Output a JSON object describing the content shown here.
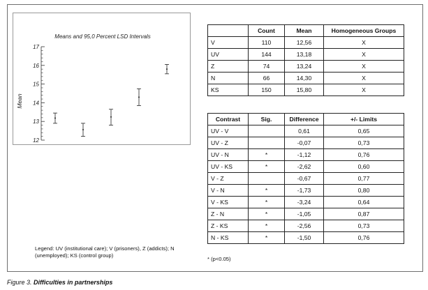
{
  "chart_data": {
    "type": "interval",
    "title": "Means and 95,0 Percent LSD Intervals",
    "xlabel": "",
    "ylabel": "Mean",
    "ylim": [
      12,
      17
    ],
    "yticks": [
      12,
      13,
      14,
      15,
      16,
      17
    ],
    "categories": [
      "UV",
      "V",
      "Z",
      "N",
      "KS"
    ],
    "means": [
      13.18,
      12.56,
      13.24,
      14.3,
      15.8
    ],
    "lower": [
      12.9,
      12.2,
      12.8,
      13.85,
      15.55
    ],
    "upper": [
      13.45,
      12.9,
      13.65,
      14.75,
      16.05
    ]
  },
  "means_table": {
    "headers": [
      "",
      "Count",
      "Mean",
      "Homogeneous Groups"
    ],
    "rows": [
      [
        "V",
        "110",
        "12,56",
        "X"
      ],
      [
        "UV",
        "144",
        "13,18",
        "X"
      ],
      [
        "Z",
        "74",
        "13,24",
        "X"
      ],
      [
        "N",
        "66",
        "14,30",
        "X"
      ],
      [
        "KS",
        "150",
        "15,80",
        "X"
      ]
    ]
  },
  "contrast_table": {
    "headers": [
      "Contrast",
      "Sig.",
      "Difference",
      "+/- Limits"
    ],
    "rows": [
      [
        "UV - V",
        "",
        "0,61",
        "0,65"
      ],
      [
        "UV - Z",
        "",
        "-0,07",
        "0,73"
      ],
      [
        "UV - N",
        "*",
        "-1,12",
        "0,76"
      ],
      [
        "UV - KS",
        "*",
        "-2,62",
        "0,60"
      ],
      [
        "V - Z",
        "",
        "-0,67",
        "0,77"
      ],
      [
        "V - N",
        "*",
        "-1,73",
        "0,80"
      ],
      [
        "V - KS",
        "*",
        "-3,24",
        "0,64"
      ],
      [
        "Z - N",
        "*",
        "-1,05",
        "0,87"
      ],
      [
        "Z - KS",
        "*",
        "-2,56",
        "0,73"
      ],
      [
        "N - KS",
        "*",
        "-1,50",
        "0,76"
      ]
    ]
  },
  "legend_text": "Legend: UV (institutional care); V (prisoners), Z (addicts); N (unemployed); KS (control group)",
  "footnote": "* (p<0.05)",
  "caption_prefix": "Figure 3.",
  "caption_title": "Difficulties in partnerships"
}
